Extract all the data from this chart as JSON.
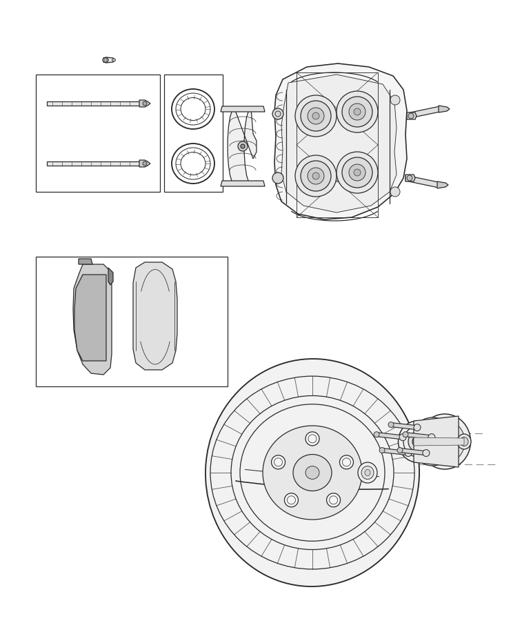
{
  "background_color": "#ffffff",
  "line_color": "#2a2a2a",
  "line_width": 0.9,
  "fig_width": 7.41,
  "fig_height": 9.0
}
